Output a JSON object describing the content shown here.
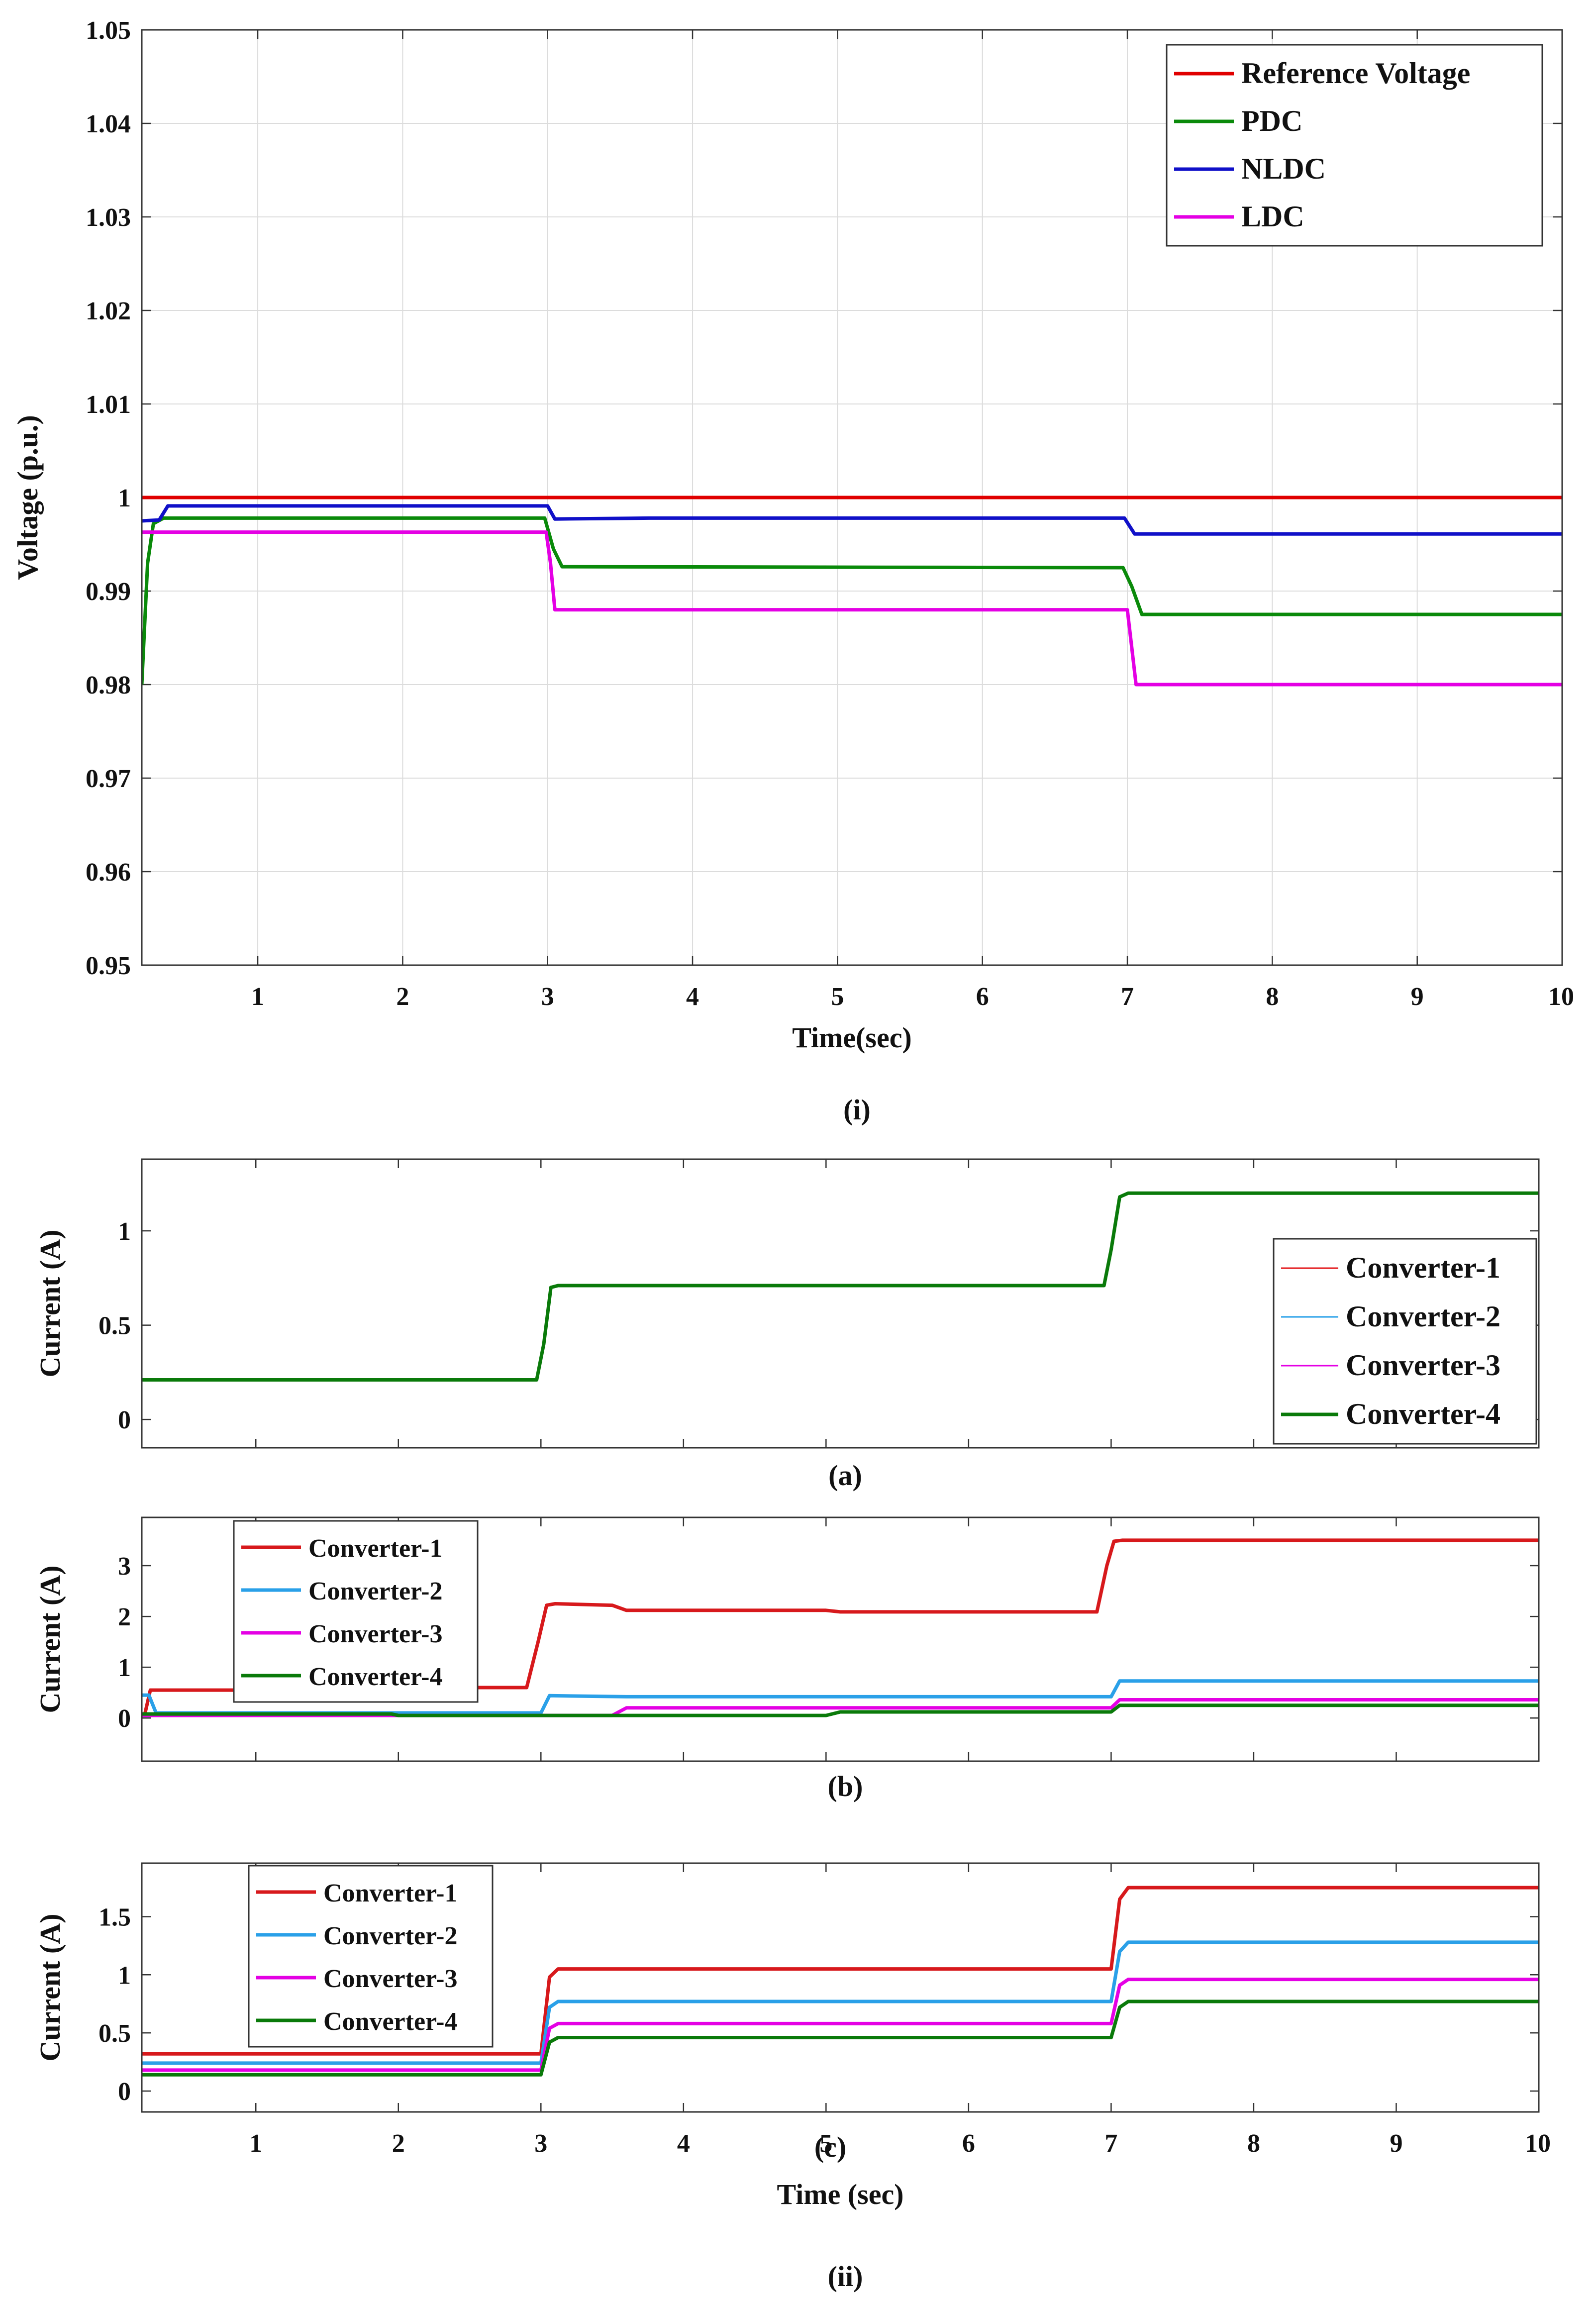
{
  "figure": {
    "caption_i": "(i)",
    "caption_ii": "(ii)"
  },
  "chart_data": [
    {
      "id": "i",
      "type": "line",
      "title": "",
      "xlabel": "Time(sec)",
      "ylabel": "Voltage (p.u.)",
      "xlim": [
        0.2,
        10
      ],
      "ylim": [
        0.95,
        1.05
      ],
      "xticks": [
        1,
        2,
        3,
        4,
        5,
        6,
        7,
        8,
        9,
        10
      ],
      "yticks": [
        0.95,
        0.96,
        0.97,
        0.98,
        0.99,
        1,
        1.01,
        1.02,
        1.03,
        1.04,
        1.05
      ],
      "ytick_labels": [
        "0.95",
        "0.96",
        "0.97",
        "0.98",
        "0.99",
        "1",
        "1.01",
        "1.02",
        "1.03",
        "1.04",
        "1.05"
      ],
      "grid": true,
      "legend_position": "top-right",
      "caption": "(i)",
      "series": [
        {
          "name": "Reference Voltage",
          "color": "#e00000",
          "points": [
            [
              0.2,
              1.0
            ],
            [
              10,
              1.0
            ]
          ]
        },
        {
          "name": "PDC",
          "color": "#0a8a0a",
          "points": [
            [
              0.2,
              0.98
            ],
            [
              0.24,
              0.993
            ],
            [
              0.28,
              0.9972
            ],
            [
              0.35,
              0.9978
            ],
            [
              2.98,
              0.9978
            ],
            [
              3.04,
              0.9945
            ],
            [
              3.1,
              0.9926
            ],
            [
              6.97,
              0.9925
            ],
            [
              7.03,
              0.9905
            ],
            [
              7.1,
              0.9875
            ],
            [
              10,
              0.9875
            ]
          ]
        },
        {
          "name": "NLDC",
          "color": "#1010c8",
          "points": [
            [
              0.2,
              0.9975
            ],
            [
              0.32,
              0.9976
            ],
            [
              0.38,
              0.9991
            ],
            [
              3.0,
              0.9991
            ],
            [
              3.05,
              0.9977
            ],
            [
              3.7,
              0.9978
            ],
            [
              6.98,
              0.9978
            ],
            [
              7.05,
              0.9961
            ],
            [
              10,
              0.9961
            ]
          ]
        },
        {
          "name": "LDC",
          "color": "#e400e4",
          "points": [
            [
              0.2,
              0.9963
            ],
            [
              2.99,
              0.9963
            ],
            [
              3.02,
              0.993
            ],
            [
              3.05,
              0.988
            ],
            [
              7.0,
              0.988
            ],
            [
              7.03,
              0.984
            ],
            [
              7.06,
              0.98
            ],
            [
              10,
              0.98
            ]
          ]
        }
      ]
    },
    {
      "id": "a",
      "type": "line",
      "title": "",
      "xlabel": "",
      "ylabel": "Current (A)",
      "xlim": [
        0.2,
        10
      ],
      "ylim": [
        -0.15,
        1.38
      ],
      "xticks": [
        1,
        2,
        3,
        4,
        5,
        6,
        7,
        8,
        9,
        10
      ],
      "show_xtick_labels": false,
      "yticks": [
        0,
        0.5,
        1
      ],
      "ytick_labels": [
        "0",
        "0.5",
        "1"
      ],
      "grid": false,
      "legend_position": "bottom-right",
      "caption": "(a)",
      "series": [
        {
          "name": "Converter-1",
          "color": "#e31a1c",
          "width": 3,
          "points": [
            [
              0.2,
              0.21
            ],
            [
              2.97,
              0.21
            ],
            [
              3.02,
              0.4
            ],
            [
              3.07,
              0.7
            ],
            [
              3.12,
              0.71
            ],
            [
              6.95,
              0.71
            ],
            [
              7.0,
              0.9
            ],
            [
              7.06,
              1.18
            ],
            [
              7.12,
              1.2
            ],
            [
              10,
              1.2
            ]
          ]
        },
        {
          "name": "Converter-2",
          "color": "#2aa0e8",
          "width": 3,
          "points": [
            [
              0.2,
              0.21
            ],
            [
              2.97,
              0.21
            ],
            [
              3.02,
              0.4
            ],
            [
              3.07,
              0.7
            ],
            [
              3.12,
              0.71
            ],
            [
              6.95,
              0.71
            ],
            [
              7.0,
              0.9
            ],
            [
              7.06,
              1.18
            ],
            [
              7.12,
              1.2
            ],
            [
              10,
              1.2
            ]
          ]
        },
        {
          "name": "Converter-3",
          "color": "#e400e4",
          "width": 3,
          "points": [
            [
              0.2,
              0.21
            ],
            [
              2.97,
              0.21
            ],
            [
              3.02,
              0.4
            ],
            [
              3.07,
              0.7
            ],
            [
              3.12,
              0.71
            ],
            [
              6.95,
              0.71
            ],
            [
              7.0,
              0.9
            ],
            [
              7.06,
              1.18
            ],
            [
              7.12,
              1.2
            ],
            [
              10,
              1.2
            ]
          ]
        },
        {
          "name": "Converter-4",
          "color": "#0a7a0a",
          "width": 7,
          "points": [
            [
              0.2,
              0.21
            ],
            [
              2.97,
              0.21
            ],
            [
              3.02,
              0.4
            ],
            [
              3.07,
              0.7
            ],
            [
              3.12,
              0.71
            ],
            [
              6.95,
              0.71
            ],
            [
              7.0,
              0.9
            ],
            [
              7.06,
              1.18
            ],
            [
              7.12,
              1.2
            ],
            [
              10,
              1.2
            ]
          ]
        }
      ]
    },
    {
      "id": "b",
      "type": "line",
      "title": "",
      "xlabel": "",
      "ylabel": "Current (A)",
      "xlim": [
        0.2,
        10
      ],
      "ylim": [
        -0.85,
        3.95
      ],
      "xticks": [
        1,
        2,
        3,
        4,
        5,
        6,
        7,
        8,
        9,
        10
      ],
      "show_xtick_labels": false,
      "yticks": [
        0,
        1,
        2,
        3
      ],
      "ytick_labels": [
        "0",
        "1",
        "2",
        "3"
      ],
      "grid": false,
      "legend_position": "top-left",
      "caption": "(b)",
      "series": [
        {
          "name": "Converter-1",
          "color": "#d7191c",
          "points": [
            [
              0.2,
              0.06
            ],
            [
              0.22,
              0.06
            ],
            [
              0.26,
              0.55
            ],
            [
              1.85,
              0.55
            ],
            [
              1.95,
              0.6
            ],
            [
              2.9,
              0.6
            ],
            [
              2.98,
              1.5
            ],
            [
              3.04,
              2.22
            ],
            [
              3.1,
              2.25
            ],
            [
              3.5,
              2.22
            ],
            [
              3.6,
              2.12
            ],
            [
              5.0,
              2.12
            ],
            [
              5.1,
              2.09
            ],
            [
              6.9,
              2.09
            ],
            [
              6.97,
              3.0
            ],
            [
              7.02,
              3.48
            ],
            [
              7.08,
              3.5
            ],
            [
              10,
              3.5
            ]
          ]
        },
        {
          "name": "Converter-2",
          "color": "#2aa0e8",
          "points": [
            [
              0.2,
              0.45
            ],
            [
              0.25,
              0.45
            ],
            [
              0.3,
              0.1
            ],
            [
              3.0,
              0.1
            ],
            [
              3.06,
              0.44
            ],
            [
              3.6,
              0.42
            ],
            [
              7.0,
              0.42
            ],
            [
              7.06,
              0.73
            ],
            [
              10,
              0.73
            ]
          ]
        },
        {
          "name": "Converter-3",
          "color": "#e400e4",
          "points": [
            [
              0.2,
              0.05
            ],
            [
              3.5,
              0.05
            ],
            [
              3.6,
              0.2
            ],
            [
              7.0,
              0.2
            ],
            [
              7.06,
              0.36
            ],
            [
              10,
              0.36
            ]
          ]
        },
        {
          "name": "Converter-4",
          "color": "#0a7a0a",
          "points": [
            [
              0.2,
              0.08
            ],
            [
              1.95,
              0.08
            ],
            [
              2.0,
              0.05
            ],
            [
              5.0,
              0.05
            ],
            [
              5.1,
              0.12
            ],
            [
              7.0,
              0.12
            ],
            [
              7.06,
              0.25
            ],
            [
              10,
              0.25
            ]
          ]
        }
      ]
    },
    {
      "id": "c",
      "type": "line",
      "title": "",
      "xlabel": "Time (sec)",
      "ylabel": "Current (A)",
      "xlim": [
        0.2,
        10
      ],
      "ylim": [
        -0.18,
        1.96
      ],
      "xticks": [
        1,
        2,
        3,
        4,
        5,
        6,
        7,
        8,
        9,
        10
      ],
      "show_xtick_labels": true,
      "yticks": [
        0,
        0.5,
        1,
        1.5
      ],
      "ytick_labels": [
        "0",
        "0.5",
        "1",
        "1.5"
      ],
      "grid": false,
      "legend_position": "top-left",
      "caption": "(c)",
      "caption_ii": "(ii)",
      "series": [
        {
          "name": "Converter-1",
          "color": "#d7191c",
          "points": [
            [
              0.2,
              0.32
            ],
            [
              3.0,
              0.32
            ],
            [
              3.06,
              0.98
            ],
            [
              3.12,
              1.05
            ],
            [
              7.0,
              1.05
            ],
            [
              7.06,
              1.65
            ],
            [
              7.12,
              1.75
            ],
            [
              10,
              1.75
            ]
          ]
        },
        {
          "name": "Converter-2",
          "color": "#2aa0e8",
          "points": [
            [
              0.2,
              0.24
            ],
            [
              3.0,
              0.24
            ],
            [
              3.06,
              0.72
            ],
            [
              3.12,
              0.77
            ],
            [
              7.0,
              0.77
            ],
            [
              7.06,
              1.2
            ],
            [
              7.12,
              1.28
            ],
            [
              10,
              1.28
            ]
          ]
        },
        {
          "name": "Converter-3",
          "color": "#e400e4",
          "points": [
            [
              0.2,
              0.18
            ],
            [
              3.0,
              0.18
            ],
            [
              3.06,
              0.54
            ],
            [
              3.12,
              0.58
            ],
            [
              7.0,
              0.58
            ],
            [
              7.06,
              0.91
            ],
            [
              7.12,
              0.96
            ],
            [
              10,
              0.96
            ]
          ]
        },
        {
          "name": "Converter-4",
          "color": "#0a7a0a",
          "points": [
            [
              0.2,
              0.14
            ],
            [
              3.0,
              0.14
            ],
            [
              3.06,
              0.42
            ],
            [
              3.12,
              0.46
            ],
            [
              7.0,
              0.46
            ],
            [
              7.06,
              0.72
            ],
            [
              7.12,
              0.77
            ],
            [
              10,
              0.77
            ]
          ]
        }
      ]
    }
  ]
}
